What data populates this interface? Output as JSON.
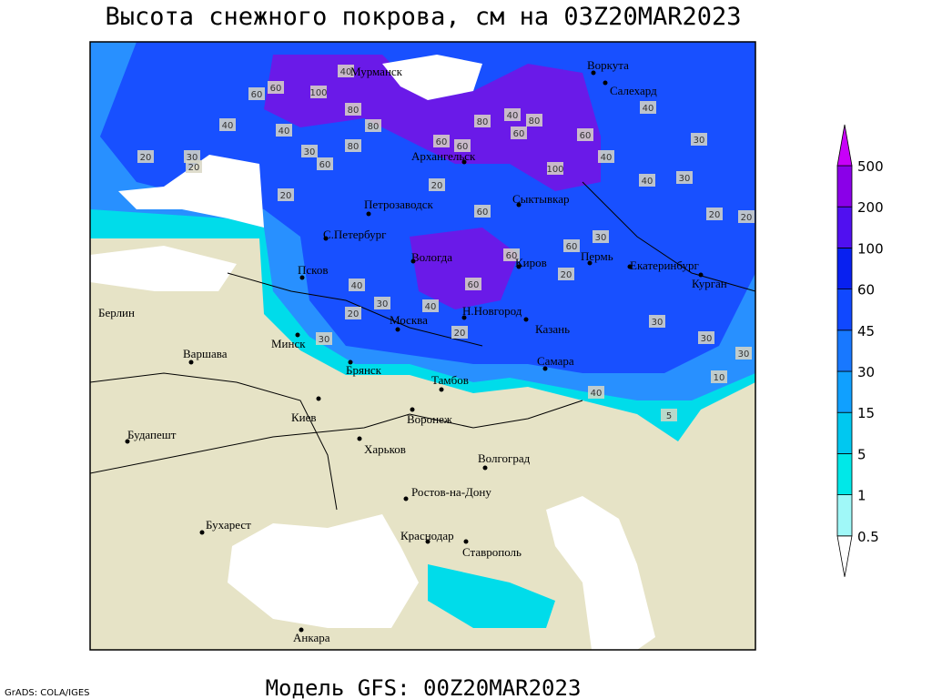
{
  "title": "Высота снежного покрова, см на 03Z20MAR2023",
  "subtitle": "Модель GFS: 00Z20MAR2023",
  "credit": "GrADS: COLA/IGES",
  "cities": [
    "Мурманск",
    "Воркута",
    "Салехард",
    "Архангельск",
    "Сыктывкар",
    "Петрозаводск",
    "С.Петербург",
    "Вологда",
    "Киров",
    "Пермь",
    "Екатеринбург",
    "Курган",
    "Псков",
    "Н.Новгород",
    "Казань",
    "Москва",
    "Берлин",
    "Варшава",
    "Минск",
    "Брянск",
    "Тамбов",
    "Самара",
    "Киев",
    "Воронеж",
    "Харьков",
    "Волгоград",
    "Будапешт",
    "Ростов-на-Дону",
    "Бухарест",
    "Краснодар",
    "Ставрополь",
    "Анкара"
  ],
  "contour_labels": [
    "40",
    "60",
    "60",
    "100",
    "80",
    "40",
    "20",
    "30",
    "20",
    "40",
    "30",
    "60",
    "80",
    "80",
    "60",
    "60",
    "80",
    "40",
    "80",
    "60",
    "60",
    "100",
    "40",
    "40",
    "30",
    "30",
    "40",
    "20",
    "20",
    "60",
    "60",
    "60",
    "20",
    "30",
    "40",
    "30",
    "20",
    "30",
    "40",
    "20",
    "60",
    "30",
    "30",
    "30",
    "10",
    "40",
    "5",
    "20",
    "20"
  ],
  "colorbar": {
    "levels": [
      0.5,
      1,
      5,
      15,
      30,
      45,
      60,
      100,
      200,
      500
    ],
    "colors": [
      "#ffffff",
      "#a0f8f8",
      "#00e8e8",
      "#00c8f0",
      "#10a0ff",
      "#1878ff",
      "#1048ff",
      "#0820f0",
      "#5010f0",
      "#8a00e8",
      "#c800f8"
    ]
  }
}
